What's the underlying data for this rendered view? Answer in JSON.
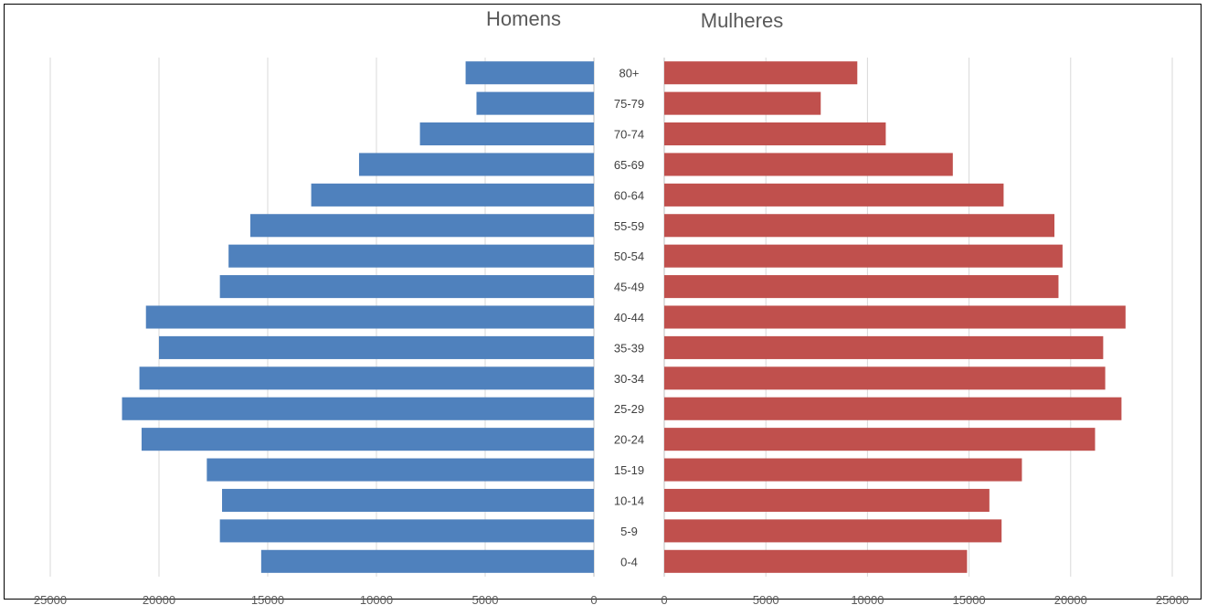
{
  "chart_data": [
    {
      "type": "bar",
      "orientation": "horizontal",
      "direction": "reversed",
      "title": "Homens",
      "categories": [
        "0-4",
        "5-9",
        "10-14",
        "15-19",
        "20-24",
        "25-29",
        "30-34",
        "35-39",
        "40-44",
        "45-49",
        "50-54",
        "55-59",
        "60-64",
        "65-69",
        "70-74",
        "75-79",
        "80+"
      ],
      "values": [
        15300,
        17200,
        17100,
        17800,
        20800,
        21700,
        20900,
        20000,
        20600,
        17200,
        16800,
        15800,
        13000,
        10800,
        8000,
        5400,
        5900
      ],
      "xlim": [
        0,
        25000
      ],
      "xticks": [
        "25000",
        "20000",
        "15000",
        "10000",
        "5000",
        "0"
      ],
      "grid": true,
      "color": "#4f81bd"
    },
    {
      "type": "bar",
      "orientation": "horizontal",
      "title": "Mulheres",
      "categories": [
        "0-4",
        "5-9",
        "10-14",
        "15-19",
        "20-24",
        "25-29",
        "30-34",
        "35-39",
        "40-44",
        "45-49",
        "50-54",
        "55-59",
        "60-64",
        "65-69",
        "70-74",
        "75-79",
        "80+"
      ],
      "values": [
        14900,
        16600,
        16000,
        17600,
        21200,
        22500,
        21700,
        21600,
        22700,
        19400,
        19600,
        19200,
        16700,
        14200,
        10900,
        7700,
        9500
      ],
      "xlim": [
        0,
        25000
      ],
      "xticks": [
        "0",
        "5000",
        "10000",
        "15000",
        "20000",
        "25000"
      ],
      "grid": true,
      "color": "#c0504d"
    }
  ]
}
